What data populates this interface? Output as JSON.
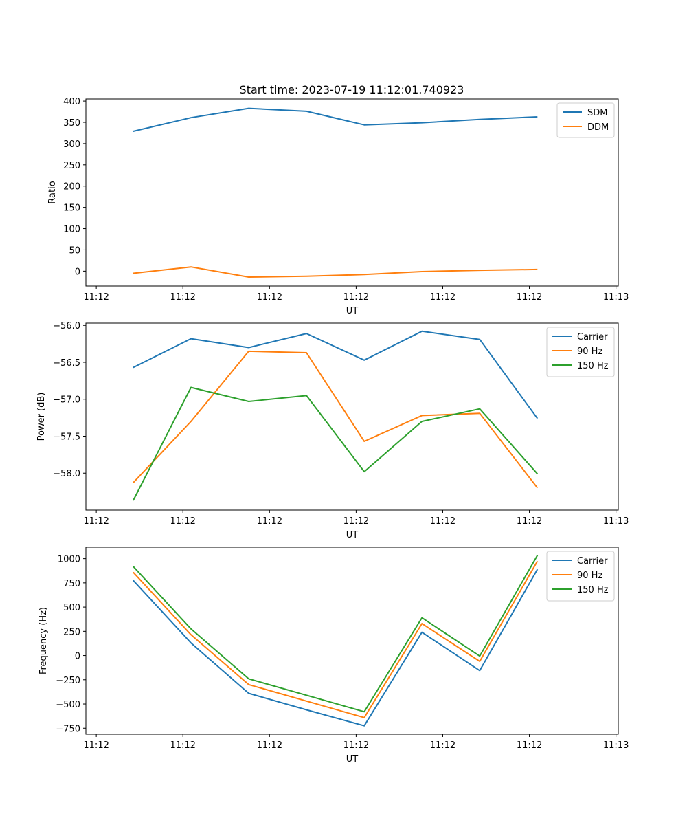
{
  "figure": {
    "title": "Start time: 2023-07-19 11:12:01.740923"
  },
  "colors": {
    "c0": "#1f77b4",
    "c1": "#ff7f0e",
    "c2": "#2ca02c"
  },
  "chart_data": [
    {
      "type": "line",
      "title": "Start time: 2023-07-19 11:12:01.740923",
      "xlabel": "UT",
      "ylabel": "Ratio",
      "x": [
        1,
        2,
        3,
        4,
        5,
        6,
        7,
        8
      ],
      "xlim": [
        0.18,
        9.4
      ],
      "xticks": [
        0.36,
        1.86,
        3.36,
        4.86,
        6.36,
        7.86,
        9.36
      ],
      "xtick_labels": [
        "11:12",
        "11:12",
        "11:12",
        "11:12",
        "11:12",
        "11:12",
        "11:13"
      ],
      "ylim": [
        -35,
        405
      ],
      "yticks": [
        0,
        50,
        100,
        150,
        200,
        250,
        300,
        350,
        400
      ],
      "ytick_labels": [
        "0",
        "50",
        "100",
        "150",
        "200",
        "250",
        "300",
        "350",
        "400"
      ],
      "legend": "top-right",
      "series": [
        {
          "name": "SDM",
          "color": "#1f77b4",
          "values": [
            329,
            361,
            383,
            376,
            344,
            349,
            357,
            363
          ]
        },
        {
          "name": "DDM",
          "color": "#ff7f0e",
          "values": [
            -5,
            10,
            -14,
            -12,
            -8,
            -1,
            2,
            4
          ]
        }
      ]
    },
    {
      "type": "line",
      "title": "",
      "xlabel": "UT",
      "ylabel": "Power (dB)",
      "x": [
        1,
        2,
        3,
        4,
        5,
        6,
        7,
        8
      ],
      "xlim": [
        0.18,
        9.4
      ],
      "xticks": [
        0.36,
        1.86,
        3.36,
        4.86,
        6.36,
        7.86,
        9.36
      ],
      "xtick_labels": [
        "11:12",
        "11:12",
        "11:12",
        "11:12",
        "11:12",
        "11:12",
        "11:13"
      ],
      "ylim": [
        -58.5,
        -55.97
      ],
      "yticks": [
        -58.0,
        -57.5,
        -57.0,
        -56.5,
        -56.0
      ],
      "ytick_labels": [
        "−58.0",
        "−57.5",
        "−57.0",
        "−56.5",
        "−56.0"
      ],
      "legend": "top-right",
      "series": [
        {
          "name": "Carrier",
          "color": "#1f77b4",
          "values": [
            -56.57,
            -56.18,
            -56.3,
            -56.11,
            -56.47,
            -56.08,
            -56.19,
            -57.26
          ]
        },
        {
          "name": "90 Hz",
          "color": "#ff7f0e",
          "values": [
            -58.13,
            -57.3,
            -56.35,
            -56.37,
            -57.57,
            -57.22,
            -57.19,
            -58.2
          ]
        },
        {
          "name": "150 Hz",
          "color": "#2ca02c",
          "values": [
            -58.37,
            -56.84,
            -57.03,
            -56.95,
            -57.98,
            -57.3,
            -57.13,
            -58.01
          ]
        }
      ]
    },
    {
      "type": "line",
      "title": "",
      "xlabel": "UT",
      "ylabel": "Frequency (Hz)",
      "x": [
        1,
        2,
        3,
        4,
        5,
        6,
        7,
        8
      ],
      "xlim": [
        0.18,
        9.4
      ],
      "xticks": [
        0.36,
        1.86,
        3.36,
        4.86,
        6.36,
        7.86,
        9.36
      ],
      "xtick_labels": [
        "11:12",
        "11:12",
        "11:12",
        "11:12",
        "11:12",
        "11:12",
        "11:13"
      ],
      "ylim": [
        -812,
        1118
      ],
      "yticks": [
        -750,
        -500,
        -250,
        0,
        250,
        500,
        750,
        1000
      ],
      "ytick_labels": [
        "−750",
        "−500",
        "−250",
        "0",
        "250",
        "500",
        "750",
        "1000"
      ],
      "legend": "top-right",
      "series": [
        {
          "name": "Carrier",
          "color": "#1f77b4",
          "values": [
            775,
            130,
            -390,
            -560,
            -725,
            240,
            -155,
            890
          ]
        },
        {
          "name": "90 Hz",
          "color": "#ff7f0e",
          "values": [
            860,
            215,
            -300,
            -470,
            -640,
            330,
            -60,
            975
          ]
        },
        {
          "name": "150 Hz",
          "color": "#2ca02c",
          "values": [
            920,
            275,
            -240,
            -410,
            -580,
            390,
            -5,
            1035
          ]
        }
      ]
    }
  ]
}
